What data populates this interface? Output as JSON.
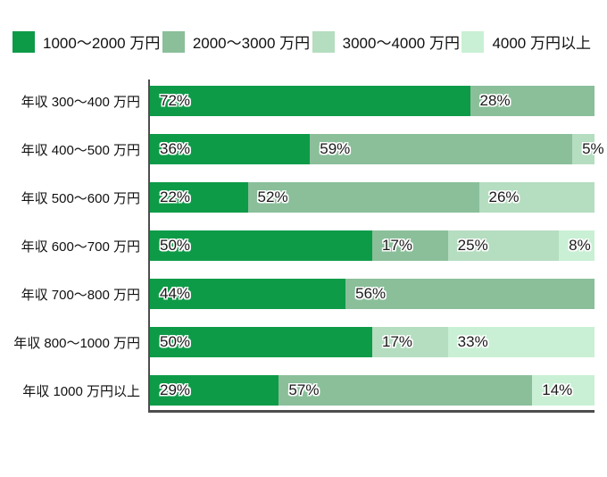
{
  "colors": {
    "series": [
      "#0e9b48",
      "#8abf9a",
      "#b5ddc0",
      "#c9f0d4"
    ],
    "axis": "#4d4d4d",
    "bar_label_text": "#1a1a1a"
  },
  "legend": {
    "items": [
      {
        "label": "1000〜2000 万円",
        "series": 0
      },
      {
        "label": "2000〜3000 万円",
        "series": 1
      },
      {
        "label": "3000〜4000 万円",
        "series": 2
      },
      {
        "label": "4000 万円以上",
        "series": 3
      }
    ]
  },
  "chart_data": {
    "type": "bar",
    "orientation": "horizontal",
    "stacked": true,
    "unit": "%",
    "x_range": [
      0,
      100
    ],
    "grid": false,
    "legend_position": "top",
    "title": "",
    "series_names": [
      "1000〜2000 万円",
      "2000〜3000 万円",
      "3000〜4000 万円",
      "4000 万円以上"
    ],
    "categories": [
      "年収 300〜400 万円",
      "年収 400〜500 万円",
      "年収 500〜600 万円",
      "年収 600〜700 万円",
      "年収 700〜800 万円",
      "年収 800〜1000 万円",
      "年収 1000 万円以上"
    ],
    "rows": [
      {
        "category": "年収 300〜400 万円",
        "segments": [
          {
            "series": 0,
            "value": 72,
            "label": "72%"
          },
          {
            "series": 1,
            "value": 28,
            "label": "28%"
          }
        ]
      },
      {
        "category": "年収 400〜500 万円",
        "segments": [
          {
            "series": 0,
            "value": 36,
            "label": "36%"
          },
          {
            "series": 1,
            "value": 59,
            "label": "59%"
          },
          {
            "series": 2,
            "value": 5,
            "label": "5%"
          }
        ]
      },
      {
        "category": "年収 500〜600 万円",
        "segments": [
          {
            "series": 0,
            "value": 22,
            "label": "22%"
          },
          {
            "series": 1,
            "value": 52,
            "label": "52%"
          },
          {
            "series": 2,
            "value": 26,
            "label": "26%"
          }
        ]
      },
      {
        "category": "年収 600〜700 万円",
        "segments": [
          {
            "series": 0,
            "value": 50,
            "label": "50%"
          },
          {
            "series": 1,
            "value": 17,
            "label": "17%"
          },
          {
            "series": 2,
            "value": 25,
            "label": "25%"
          },
          {
            "series": 3,
            "value": 8,
            "label": "8%"
          }
        ]
      },
      {
        "category": "年収 700〜800 万円",
        "segments": [
          {
            "series": 0,
            "value": 44,
            "label": "44%"
          },
          {
            "series": 1,
            "value": 56,
            "label": "56%"
          }
        ]
      },
      {
        "category": "年収 800〜1000 万円",
        "segments": [
          {
            "series": 0,
            "value": 50,
            "label": "50%"
          },
          {
            "series": 2,
            "value": 17,
            "label": "17%"
          },
          {
            "series": 3,
            "value": 33,
            "label": "33%"
          }
        ]
      },
      {
        "category": "年収 1000 万円以上",
        "segments": [
          {
            "series": 0,
            "value": 29,
            "label": "29%"
          },
          {
            "series": 1,
            "value": 57,
            "label": "57%"
          },
          {
            "series": 3,
            "value": 14,
            "label": "14%"
          }
        ]
      }
    ]
  }
}
